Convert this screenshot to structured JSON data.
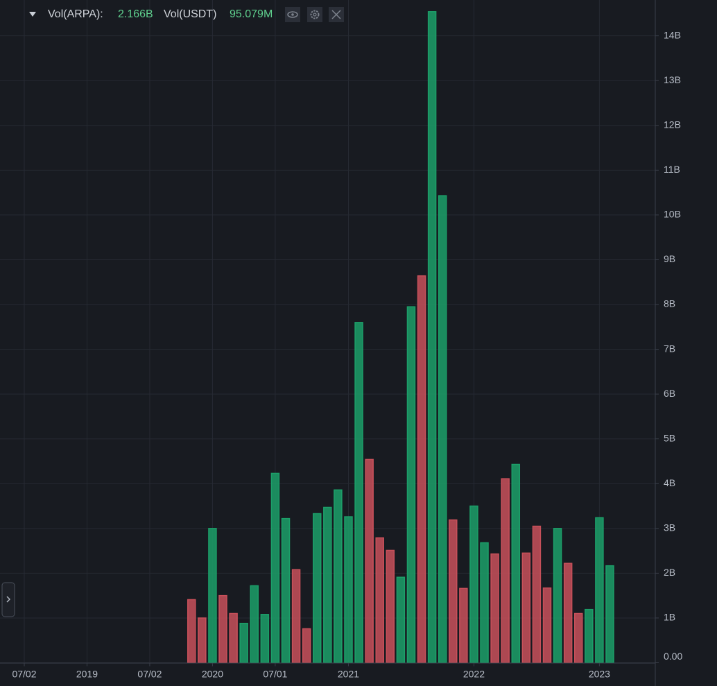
{
  "header": {
    "vol_base_label": "Vol(ARPA):",
    "vol_base_value": "2.166B",
    "vol_quote_label": "Vol(USDT)",
    "vol_quote_value": "95.079M"
  },
  "chart_data": {
    "type": "bar",
    "categories": [
      "07/02",
      null,
      null,
      null,
      null,
      null,
      "2019",
      null,
      null,
      null,
      null,
      null,
      "07/02",
      null,
      null,
      null,
      null,
      null,
      "2020",
      null,
      null,
      null,
      null,
      null,
      "07/01",
      null,
      null,
      null,
      null,
      null,
      null,
      "2021",
      null,
      null,
      null,
      null,
      null,
      null,
      null,
      null,
      null,
      null,
      null,
      "2022",
      null,
      null,
      null,
      null,
      null,
      null,
      null,
      null,
      null,
      null,
      null,
      "2023",
      null
    ],
    "values": [
      null,
      null,
      null,
      null,
      null,
      null,
      null,
      null,
      null,
      null,
      null,
      null,
      null,
      null,
      null,
      null,
      1.41,
      1.0,
      3.0,
      1.5,
      1.1,
      0.88,
      1.72,
      1.08,
      4.23,
      3.22,
      2.08,
      0.76,
      3.33,
      3.47,
      3.86,
      3.26,
      7.6,
      4.54,
      2.79,
      2.51,
      1.91,
      7.95,
      8.64,
      14.54,
      10.43,
      3.19,
      1.66,
      3.5,
      2.68,
      2.43,
      4.11,
      4.43,
      2.45,
      3.05,
      1.67,
      3.0,
      2.22,
      1.1,
      1.19,
      3.24,
      2.166
    ],
    "colors": [
      null,
      null,
      null,
      null,
      null,
      null,
      null,
      null,
      null,
      null,
      null,
      null,
      null,
      null,
      null,
      null,
      "#c8505a",
      "#c8505a",
      "#1c9f69",
      "#c8505a",
      "#c8505a",
      "#1c9f69",
      "#1c9f69",
      "#1c9f69",
      "#1c9f69",
      "#1c9f69",
      "#c8505a",
      "#c8505a",
      "#1c9f69",
      "#1c9f69",
      "#1c9f69",
      "#1c9f69",
      "#1c9f69",
      "#c8505a",
      "#c8505a",
      "#c8505a",
      "#1c9f69",
      "#1c9f69",
      "#c8505a",
      "#1c9f69",
      "#1c9f69",
      "#c8505a",
      "#c8505a",
      "#1c9f69",
      "#1c9f69",
      "#c8505a",
      "#c8505a",
      "#1c9f69",
      "#c8505a",
      "#c8505a",
      "#c8505a",
      "#1c9f69",
      "#c8505a",
      "#c8505a",
      "#1c9f69",
      "#1c9f69",
      "#1c9f69"
    ],
    "ylim": [
      0,
      14.8
    ],
    "yticks": [
      {
        "value": 0,
        "label": "0.00"
      },
      {
        "value": 1,
        "label": "1B"
      },
      {
        "value": 2,
        "label": "2B"
      },
      {
        "value": 3,
        "label": "3B"
      },
      {
        "value": 4,
        "label": "4B"
      },
      {
        "value": 5,
        "label": "5B"
      },
      {
        "value": 6,
        "label": "6B"
      },
      {
        "value": 7,
        "label": "7B"
      },
      {
        "value": 8,
        "label": "8B"
      },
      {
        "value": 9,
        "label": "9B"
      },
      {
        "value": 10,
        "label": "10B"
      },
      {
        "value": 11,
        "label": "11B"
      },
      {
        "value": 12,
        "label": "12B"
      },
      {
        "value": 13,
        "label": "13B"
      },
      {
        "value": 14,
        "label": "14B"
      }
    ],
    "grid": true
  }
}
